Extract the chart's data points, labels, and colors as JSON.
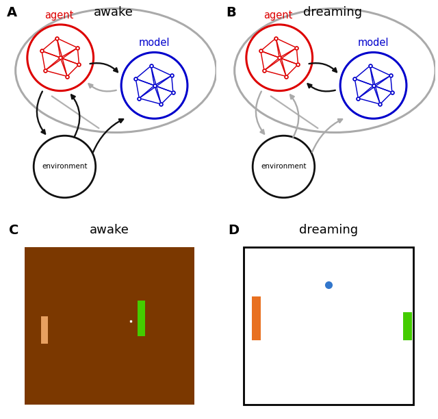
{
  "panel_A_title": "awake",
  "panel_B_title": "dreaming",
  "panel_C_title": "awake",
  "panel_D_title": "dreaming",
  "panel_labels": [
    "A",
    "B",
    "C",
    "D"
  ],
  "agent_color": "#dd0000",
  "model_color": "#0000cc",
  "env_color": "#111111",
  "ellipse_color": "#aaaaaa",
  "arrow_black": "#111111",
  "arrow_gray": "#aaaaaa",
  "bg_color": "#7B3800",
  "orange_bar_color": "#E8A060",
  "orange_bar2_color": "#E87020",
  "green_bar_color": "#44cc00",
  "white_dot_color": "#ffffff",
  "blue_dot_color": "#3377cc",
  "title_fontsize": 13,
  "label_fontsize": 14
}
